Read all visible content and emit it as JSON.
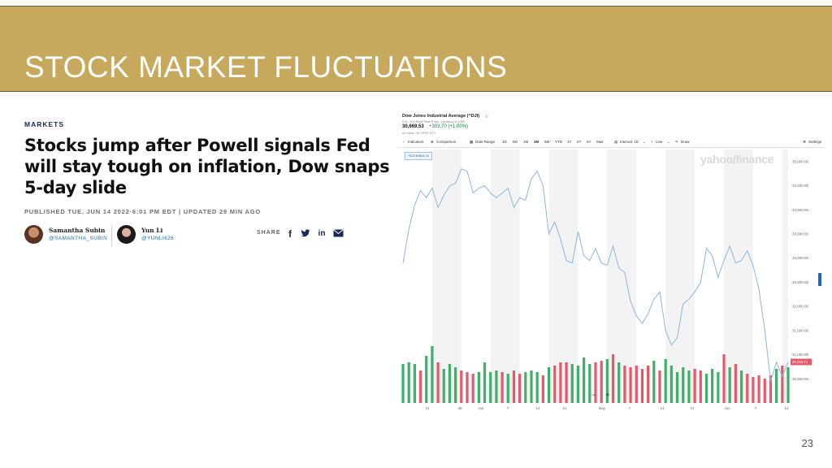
{
  "slide": {
    "title": "STOCK MARKET FLUCTUATIONS",
    "page_number": "23",
    "banner_color": "#c7a95e"
  },
  "article": {
    "section": "MARKETS",
    "headline": "Stocks jump after Powell signals Fed will stay tough on inflation, Dow snaps 5-day slide",
    "published": "PUBLISHED TUE, JUN 14 2022·6:01 PM EDT | UPDATED 29 MIN AGO",
    "authors": [
      {
        "name": "Samantha Subin",
        "handle": "@SAMANTHA_SUBIN"
      },
      {
        "name": "Yun Li",
        "handle": "@YUNLI626"
      }
    ],
    "share_label": "SHARE",
    "share_icons": [
      "facebook-icon",
      "twitter-icon",
      "linkedin-icon",
      "mail-icon"
    ]
  },
  "finance_widget": {
    "title": "Dow Jones Industrial Average (^DJI)",
    "subtitle": "DJI - DJI Real Time Price. Currency in USD",
    "price": "30,669.53",
    "change": "+303.70  (+1.00%)",
    "time": "At close: 05:13PM EDT",
    "toolbar": {
      "indicators": "Indicators",
      "comparison": "Comparison",
      "date_range": "Date Range",
      "ranges": [
        "1D",
        "5D",
        "1M",
        "3M",
        "6M",
        "YTD",
        "1Y",
        "2Y",
        "5Y",
        "Max"
      ],
      "selected_range": "3M",
      "interval": "Interval: 1D",
      "line": "Line",
      "draw": "Draw",
      "settings": "Settings"
    },
    "badge": "^DJI 30516.74",
    "watermark": "yahoo/finance",
    "zoom_minus": "−",
    "zoom_plus": "+",
    "current_price_tag": "30,516.74"
  },
  "chart_data": {
    "type": "line",
    "title": "Dow Jones Industrial Average (^DJI)",
    "x_tick_labels": [
      "21",
      "28",
      "Apr",
      "7",
      "14",
      "21",
      "May",
      "7",
      "14",
      "21",
      "Jun",
      "7",
      "14"
    ],
    "y_tick_labels": [
      "35,000.00",
      "34,500.00",
      "34,000.00",
      "33,500.00",
      "33,000.00",
      "32,500.00",
      "32,000.00",
      "31,500.00",
      "31,000.00",
      "30,500.00"
    ],
    "ylim": [
      30000,
      35250
    ],
    "series": [
      {
        "values": [
          32900,
          33600,
          34100,
          34400,
          34250,
          34450,
          34050,
          34300,
          34500,
          34550,
          34850,
          34800,
          34350,
          34450,
          34500,
          34350,
          34250,
          34350,
          34450,
          34050,
          34250,
          34200,
          34650,
          34800,
          34500,
          33500,
          33750,
          33400,
          32950,
          32900,
          33550,
          33050,
          32950,
          33200,
          32900,
          32850,
          33250,
          32800,
          32700,
          32100,
          31800,
          31650,
          31850,
          32150,
          32300,
          31500,
          31200,
          31350,
          32050,
          32150,
          32300,
          32500,
          33200,
          33050,
          32600,
          32950,
          33250,
          32900,
          32950,
          33150,
          32850,
          32350,
          31500,
          30450,
          30850,
          30550,
          30850
        ]
      }
    ],
    "volume_bars": {
      "values": [
        48,
        50,
        48,
        40,
        58,
        70,
        50,
        42,
        48,
        44,
        40,
        38,
        36,
        38,
        50,
        38,
        40,
        38,
        36,
        40,
        36,
        38,
        40,
        38,
        34,
        44,
        46,
        50,
        50,
        48,
        46,
        56,
        48,
        50,
        52,
        54,
        60,
        50,
        46,
        44,
        46,
        42,
        46,
        52,
        40,
        54,
        46,
        38,
        44,
        40,
        42,
        40,
        36,
        42,
        38,
        60,
        44,
        48,
        40,
        36,
        32,
        34,
        30,
        34,
        42,
        46,
        44
      ],
      "colors_down": [
        3,
        6,
        10,
        11,
        12,
        17,
        19,
        20,
        24,
        26,
        27,
        28,
        33,
        34,
        36,
        38,
        39,
        40,
        41,
        42,
        44,
        50,
        51,
        55,
        57,
        59,
        60,
        61,
        62,
        63,
        65
      ],
      "up_color": "#3fb06a",
      "down_color": "#e8576a"
    },
    "line_color": "#8fb4dd",
    "grid": true
  }
}
